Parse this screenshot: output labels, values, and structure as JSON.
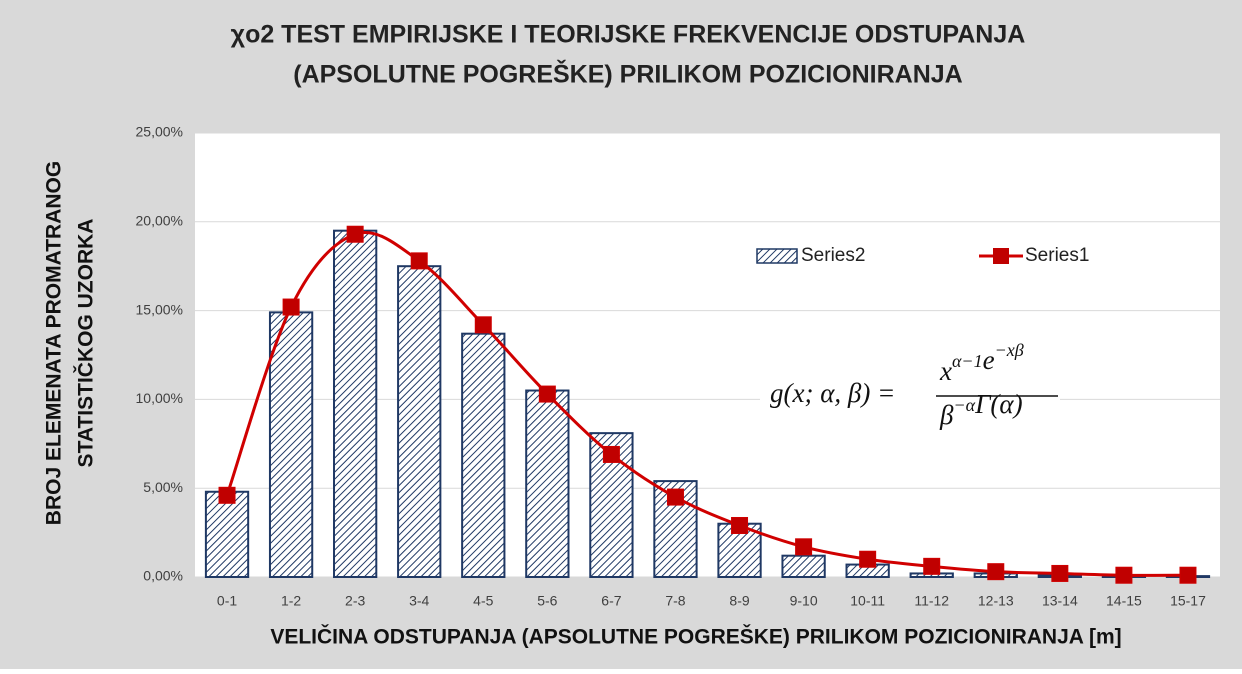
{
  "chart_data": {
    "type": "bar-line",
    "title": [
      "χo2 TEST EMPIRIJSKE I TEORIJSKE FREKVENCIJE ODSTUPANJA",
      "(APSOLUTNE POGREŠKE) PRILIKOM POZICIONIRANJA"
    ],
    "y_label": [
      "BROJ ELEMENATA PROMATRANOG",
      "STATISTIČKOG UZORKA"
    ],
    "x_label": "VELIČINA ODSTUPANJA (APSOLUTNE POGREŠKE) PRILIKOM POZICIONIRANJA [m]",
    "categories": [
      "0-1",
      "1-2",
      "2-3",
      "3-4",
      "4-5",
      "5-6",
      "6-7",
      "7-8",
      "8-9",
      "9-10",
      "10-11",
      "11-12",
      "12-13",
      "13-14",
      "14-15",
      "15-17"
    ],
    "series": [
      {
        "name": "Series2",
        "type": "bar",
        "color": "#1f3864",
        "values": [
          4.8,
          14.9,
          19.5,
          17.5,
          13.7,
          10.5,
          8.1,
          5.4,
          3.0,
          1.2,
          0.7,
          0.2,
          0.2,
          0.1,
          0.05,
          0.05
        ]
      },
      {
        "name": "Series1",
        "type": "line",
        "color": "#d00000",
        "smooth": true,
        "values": [
          4.6,
          15.2,
          19.3,
          17.8,
          14.2,
          10.3,
          6.9,
          4.5,
          2.9,
          1.7,
          1.0,
          0.6,
          0.3,
          0.2,
          0.1,
          0.1
        ]
      }
    ],
    "ylim": [
      0,
      25
    ],
    "yticks": [
      {
        "value": 0,
        "label": "0,00%"
      },
      {
        "value": 5,
        "label": "5,00%"
      },
      {
        "value": 10,
        "label": "10,00%"
      },
      {
        "value": 15,
        "label": "15,00%"
      },
      {
        "value": 20,
        "label": "20,00%"
      },
      {
        "value": 25,
        "label": "25,00%"
      }
    ],
    "grid": true,
    "legend": "upper-right",
    "annotation": {
      "lhs": "g(x; α, β) =",
      "numerator": [
        {
          "base": "x",
          "sup": "α−1"
        },
        {
          "base": "e",
          "sup": "−xβ"
        }
      ],
      "denominator": [
        {
          "base": "β",
          "sup": "−α"
        },
        {
          "base": "Γ(α)"
        }
      ]
    }
  }
}
